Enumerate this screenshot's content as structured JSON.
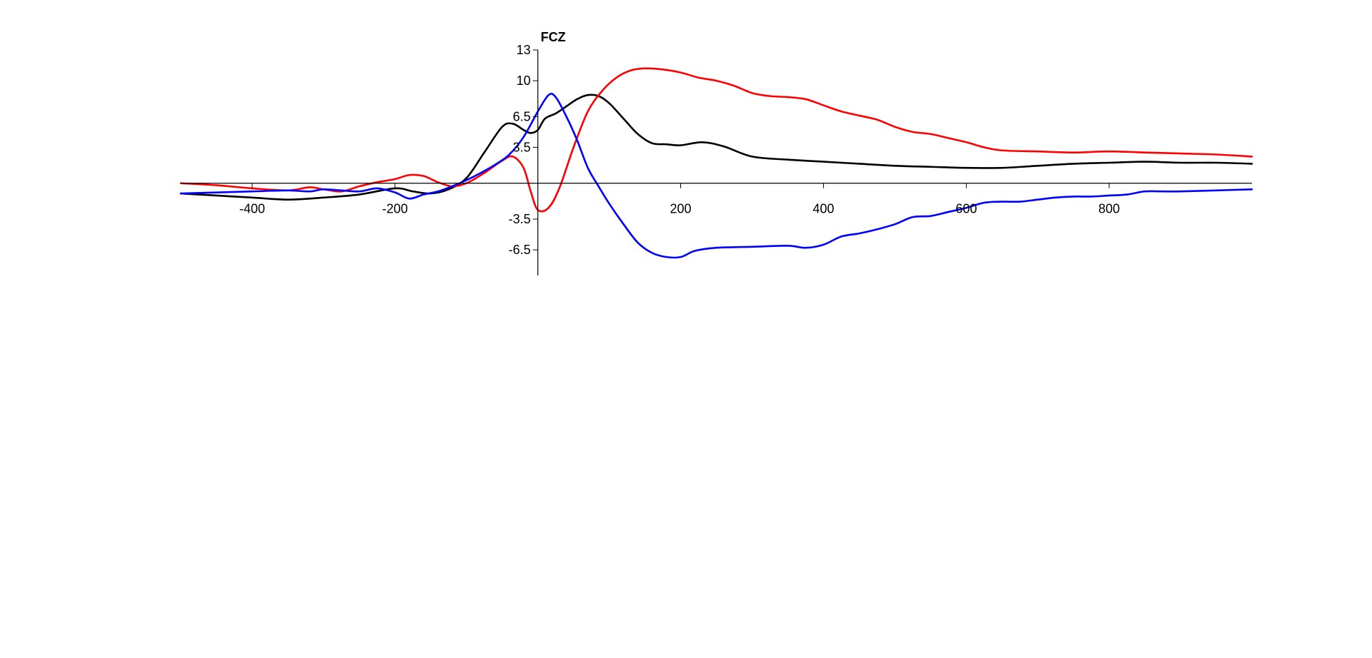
{
  "chart_data": {
    "type": "line",
    "title": "FCZ",
    "xlabel": "",
    "ylabel": "",
    "xlim": [
      -500,
      1000
    ],
    "ylim": [
      -9,
      13
    ],
    "x_ticks": [
      -400,
      -200,
      200,
      400,
      600,
      800
    ],
    "x_tick_labels": [
      "-400",
      "-200",
      "200",
      "400",
      "600",
      "800"
    ],
    "y_ticks": [
      13,
      10,
      6.5,
      3.5,
      -3.5,
      -6.5
    ],
    "y_tick_labels": [
      "13",
      "10",
      "6.5",
      "3.5",
      "-3.5",
      "-6.5"
    ],
    "grid": false,
    "legend": "none",
    "series": [
      {
        "color": "#000000",
        "points": [
          [
            -500,
            -1.0
          ],
          [
            -450,
            -1.2
          ],
          [
            -400,
            -1.4
          ],
          [
            -350,
            -1.6
          ],
          [
            -300,
            -1.4
          ],
          [
            -250,
            -1.1
          ],
          [
            -200,
            -0.5
          ],
          [
            -175,
            -0.8
          ],
          [
            -150,
            -1.0
          ],
          [
            -125,
            -0.6
          ],
          [
            -100,
            0.5
          ],
          [
            -75,
            3.0
          ],
          [
            -50,
            5.5
          ],
          [
            -35,
            5.8
          ],
          [
            -20,
            5.2
          ],
          [
            -10,
            4.9
          ],
          [
            0,
            5.2
          ],
          [
            10,
            6.3
          ],
          [
            25,
            6.8
          ],
          [
            40,
            7.5
          ],
          [
            55,
            8.2
          ],
          [
            70,
            8.6
          ],
          [
            85,
            8.5
          ],
          [
            100,
            7.8
          ],
          [
            120,
            6.3
          ],
          [
            140,
            4.8
          ],
          [
            160,
            3.9
          ],
          [
            180,
            3.8
          ],
          [
            200,
            3.7
          ],
          [
            230,
            4.0
          ],
          [
            260,
            3.6
          ],
          [
            300,
            2.6
          ],
          [
            350,
            2.3
          ],
          [
            400,
            2.1
          ],
          [
            450,
            1.9
          ],
          [
            500,
            1.7
          ],
          [
            550,
            1.6
          ],
          [
            600,
            1.5
          ],
          [
            650,
            1.5
          ],
          [
            700,
            1.7
          ],
          [
            750,
            1.9
          ],
          [
            800,
            2.0
          ],
          [
            850,
            2.1
          ],
          [
            900,
            2.0
          ],
          [
            950,
            2.0
          ],
          [
            1000,
            1.9
          ]
        ]
      },
      {
        "color": "#ff0000",
        "points": [
          [
            -500,
            0.0
          ],
          [
            -450,
            -0.2
          ],
          [
            -400,
            -0.5
          ],
          [
            -350,
            -0.7
          ],
          [
            -320,
            -0.4
          ],
          [
            -300,
            -0.6
          ],
          [
            -275,
            -0.8
          ],
          [
            -250,
            -0.3
          ],
          [
            -225,
            0.1
          ],
          [
            -200,
            0.4
          ],
          [
            -180,
            0.8
          ],
          [
            -160,
            0.7
          ],
          [
            -140,
            0.1
          ],
          [
            -120,
            -0.3
          ],
          [
            -100,
            0.0
          ],
          [
            -75,
            1.0
          ],
          [
            -50,
            2.2
          ],
          [
            -35,
            2.6
          ],
          [
            -20,
            1.5
          ],
          [
            -10,
            -0.8
          ],
          [
            0,
            -2.6
          ],
          [
            15,
            -2.4
          ],
          [
            30,
            -0.5
          ],
          [
            50,
            3.5
          ],
          [
            70,
            7.0
          ],
          [
            90,
            9.0
          ],
          [
            110,
            10.3
          ],
          [
            130,
            11.0
          ],
          [
            150,
            11.2
          ],
          [
            175,
            11.1
          ],
          [
            200,
            10.8
          ],
          [
            225,
            10.3
          ],
          [
            250,
            10.0
          ],
          [
            275,
            9.5
          ],
          [
            300,
            8.8
          ],
          [
            325,
            8.5
          ],
          [
            350,
            8.4
          ],
          [
            375,
            8.2
          ],
          [
            400,
            7.6
          ],
          [
            425,
            7.0
          ],
          [
            450,
            6.6
          ],
          [
            475,
            6.2
          ],
          [
            500,
            5.5
          ],
          [
            525,
            5.0
          ],
          [
            550,
            4.8
          ],
          [
            575,
            4.4
          ],
          [
            600,
            4.0
          ],
          [
            625,
            3.5
          ],
          [
            650,
            3.2
          ],
          [
            700,
            3.1
          ],
          [
            750,
            3.0
          ],
          [
            800,
            3.1
          ],
          [
            850,
            3.0
          ],
          [
            900,
            2.9
          ],
          [
            950,
            2.8
          ],
          [
            1000,
            2.6
          ]
        ]
      },
      {
        "color": "#0000ff",
        "points": [
          [
            -500,
            -1.0
          ],
          [
            -450,
            -0.9
          ],
          [
            -400,
            -0.8
          ],
          [
            -350,
            -0.7
          ],
          [
            -320,
            -0.8
          ],
          [
            -300,
            -0.6
          ],
          [
            -275,
            -0.7
          ],
          [
            -250,
            -0.8
          ],
          [
            -225,
            -0.5
          ],
          [
            -200,
            -0.9
          ],
          [
            -180,
            -1.5
          ],
          [
            -160,
            -1.1
          ],
          [
            -140,
            -0.8
          ],
          [
            -120,
            -0.3
          ],
          [
            -100,
            0.3
          ],
          [
            -80,
            1.0
          ],
          [
            -60,
            1.8
          ],
          [
            -40,
            2.8
          ],
          [
            -20,
            4.5
          ],
          [
            0,
            7.0
          ],
          [
            15,
            8.6
          ],
          [
            25,
            8.4
          ],
          [
            40,
            6.5
          ],
          [
            55,
            4.2
          ],
          [
            70,
            1.5
          ],
          [
            85,
            -0.3
          ],
          [
            100,
            -2.0
          ],
          [
            120,
            -4.0
          ],
          [
            140,
            -5.8
          ],
          [
            160,
            -6.8
          ],
          [
            180,
            -7.2
          ],
          [
            200,
            -7.2
          ],
          [
            220,
            -6.6
          ],
          [
            250,
            -6.3
          ],
          [
            300,
            -6.2
          ],
          [
            350,
            -6.1
          ],
          [
            375,
            -6.3
          ],
          [
            400,
            -6.0
          ],
          [
            425,
            -5.2
          ],
          [
            450,
            -4.9
          ],
          [
            475,
            -4.5
          ],
          [
            500,
            -4.0
          ],
          [
            525,
            -3.3
          ],
          [
            550,
            -3.2
          ],
          [
            575,
            -2.8
          ],
          [
            600,
            -2.4
          ],
          [
            625,
            -1.9
          ],
          [
            650,
            -1.8
          ],
          [
            675,
            -1.8
          ],
          [
            700,
            -1.6
          ],
          [
            725,
            -1.4
          ],
          [
            750,
            -1.3
          ],
          [
            775,
            -1.3
          ],
          [
            800,
            -1.2
          ],
          [
            825,
            -1.1
          ],
          [
            850,
            -0.8
          ],
          [
            875,
            -0.8
          ],
          [
            900,
            -0.8
          ],
          [
            950,
            -0.7
          ],
          [
            1000,
            -0.6
          ]
        ]
      }
    ]
  }
}
